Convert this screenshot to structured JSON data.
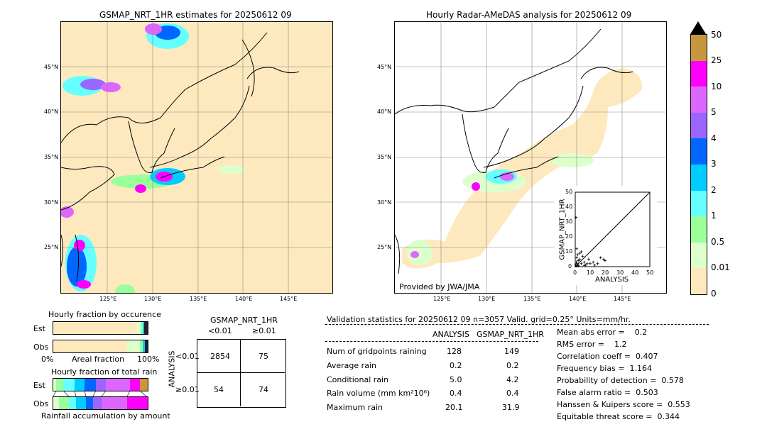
{
  "left_map": {
    "title": "GSMAP_NRT_1HR estimates for 20250612 09",
    "lat_labels": [
      "45°N",
      "40°N",
      "35°N",
      "30°N",
      "25°N"
    ],
    "lon_labels": [
      "125°E",
      "130°E",
      "135°E",
      "140°E",
      "145°E"
    ]
  },
  "right_map": {
    "title": "Hourly Radar-AMeDAS analysis for 20250612 09",
    "lat_labels": [
      "45°N",
      "40°N",
      "35°N",
      "30°N",
      "25°N"
    ],
    "lon_labels": [
      "125°E",
      "130°E",
      "135°E",
      "140°E",
      "145°E"
    ],
    "credit": "Provided by JWA/JMA"
  },
  "colorbar": {
    "labels": [
      "50",
      "25",
      "10",
      "5",
      "4",
      "3",
      "2",
      "1",
      "0.5",
      "0.01",
      "0"
    ],
    "colors": [
      "#c8963c",
      "#ff00ff",
      "#dd66ff",
      "#9966ff",
      "#0066ff",
      "#00ccff",
      "#66ffff",
      "#99ff99",
      "#ddffcc",
      "#fde9bd"
    ]
  },
  "scatter": {
    "xlabel": "ANALYSIS",
    "ylabel": "GSMAP_NRT_1HR",
    "ticks": [
      "0",
      "10",
      "20",
      "30",
      "40",
      "50"
    ]
  },
  "fraction_occurrence": {
    "title": "Hourly fraction by occurence",
    "rows": [
      "Est",
      "Obs"
    ],
    "axis_left": "0%",
    "axis_mid": "Areal fraction",
    "axis_right": "100%"
  },
  "fraction_total": {
    "title": "Hourly fraction of total rain",
    "rows": [
      "Est",
      "Obs"
    ],
    "footer": "Rainfall accumulation by amount"
  },
  "contingency": {
    "title": "GSMAP_NRT_1HR",
    "col_labels": [
      "<0.01",
      "≥0.01"
    ],
    "row_labels": [
      "<0.01",
      "≥0.01"
    ],
    "ylabel": "ANALYSIS",
    "cells": [
      "2854",
      "75",
      "54",
      "74"
    ]
  },
  "validation": {
    "header": "Validation statistics for 20250612 09  n=3057 Valid. grid=0.25° Units=mm/hr.",
    "col_analysis": "ANALYSIS",
    "col_gsmap": "GSMAP_NRT_1HR",
    "rows": [
      {
        "label": "Num of gridpoints raining",
        "analysis": "128",
        "gsmap": "149"
      },
      {
        "label": "Average rain",
        "analysis": "0.2",
        "gsmap": "0.2"
      },
      {
        "label": "Conditional rain",
        "analysis": "5.0",
        "gsmap": "4.2"
      },
      {
        "label": "Rain volume (mm km²10⁶)",
        "analysis": "0.4",
        "gsmap": "0.4"
      },
      {
        "label": "Maximum rain",
        "analysis": "20.1",
        "gsmap": "31.9"
      }
    ],
    "scores": [
      "Mean abs error =    0.2",
      "RMS error =    1.2",
      "Correlation coeff =  0.407",
      "Frequency bias =  1.164",
      "Probability of detection =  0.578",
      "False alarm ratio =  0.503",
      "Hanssen & Kuipers score =  0.553",
      "Equitable threat score =  0.344"
    ]
  },
  "chart_data": [
    {
      "type": "scatter",
      "xlabel": "ANALYSIS",
      "ylabel": "GSMAP_NRT_1HR",
      "xlim": [
        0,
        50
      ],
      "ylim": [
        0,
        50
      ],
      "points": [
        [
          0.5,
          33
        ],
        [
          1,
          12
        ],
        [
          1,
          6
        ],
        [
          2,
          4
        ],
        [
          3,
          5
        ],
        [
          1,
          2
        ],
        [
          2,
          1
        ],
        [
          4,
          2
        ],
        [
          5,
          7
        ],
        [
          6,
          3
        ],
        [
          7,
          1
        ],
        [
          8,
          2
        ],
        [
          9,
          5
        ],
        [
          10,
          2
        ],
        [
          12,
          3
        ],
        [
          13,
          1
        ],
        [
          15,
          2
        ],
        [
          17,
          6
        ],
        [
          19,
          5
        ],
        [
          20,
          4
        ],
        [
          0.3,
          1
        ],
        [
          0.7,
          3
        ],
        [
          1.5,
          8
        ],
        [
          3,
          9
        ],
        [
          4,
          10
        ],
        [
          2,
          0.5
        ],
        [
          0.5,
          0.3
        ],
        [
          6,
          0.8
        ]
      ]
    },
    {
      "type": "table",
      "title": "GSMAP_NRT_1HR",
      "columns": [
        "<0.01",
        "≥0.01"
      ],
      "rows": [
        "<0.01",
        "≥0.01"
      ],
      "values": [
        [
          2854,
          75
        ],
        [
          54,
          74
        ]
      ]
    }
  ]
}
